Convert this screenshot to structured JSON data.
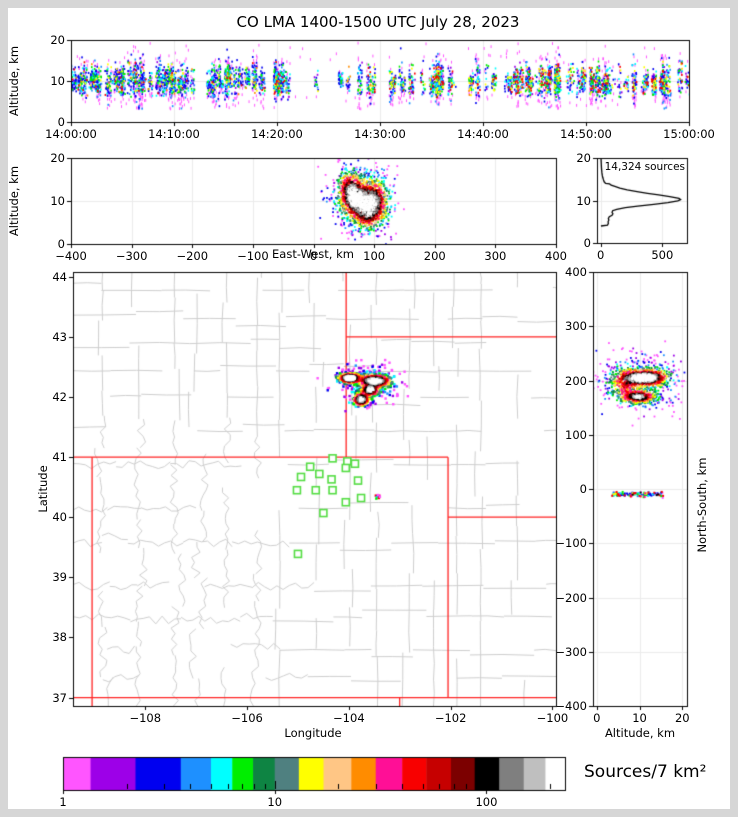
{
  "title": "CO LMA 1400-1500 UTC July 28, 2023",
  "palette": {
    "names": [
      "magenta",
      "purple",
      "blue",
      "dodger-blue",
      "cyan",
      "green",
      "sea-green",
      "slate-teal",
      "yellow",
      "peach",
      "orange",
      "deep-pink",
      "red",
      "dark-red",
      "maroon",
      "black",
      "gray",
      "light-gray",
      "white"
    ],
    "colors": [
      "#ff55ff",
      "#9d00e8",
      "#0000f0",
      "#1e90ff",
      "#00ffff",
      "#00ee00",
      "#0e8443",
      "#4f8080",
      "#ffff00",
      "#ffc685",
      "#ff8c00",
      "#ff0f96",
      "#f80000",
      "#c60000",
      "#7c0000",
      "#000000",
      "#7f7f7f",
      "#bfbfbf",
      "#ffffff"
    ],
    "county_line": "#cdcdcd",
    "state_line": "#ff2222",
    "station_green": "#55dd44",
    "grid_line": "#ebebeb",
    "frame": "#000000"
  },
  "chart_data": [
    {
      "id": "time_height",
      "type": "scatter",
      "xlabel": "",
      "ylabel": "Altitude, km",
      "xlim": [
        0,
        3600
      ],
      "ylim": [
        0,
        20
      ],
      "xticks": {
        "values": [
          0,
          600,
          1200,
          1800,
          2400,
          3000,
          3600
        ],
        "labels": [
          "14:00:00",
          "14:10:00",
          "14:20:00",
          "14:30:00",
          "14:40:00",
          "14:50:00",
          "15:00:00"
        ]
      },
      "yticks": {
        "values": [
          0,
          10,
          20
        ],
        "labels": [
          "0",
          "10",
          "20"
        ]
      },
      "gen": {
        "n_streaks": 170,
        "alt_center": 9.9,
        "alt_center_spread": 2.6,
        "spread_min": 1.2,
        "spread_max": 3.3,
        "lull": [
          1290,
          1660
        ],
        "warm_after": 1700,
        "fringe_extras": 70
      }
    },
    {
      "id": "ew_height",
      "type": "scatter",
      "xlabel": "East-West, km",
      "ylabel": "Altitude, km",
      "xlim": [
        -400,
        400
      ],
      "ylim": [
        0,
        20
      ],
      "xticks": {
        "values": [
          -400,
          -300,
          -200,
          -100,
          0,
          100,
          200,
          300,
          400
        ],
        "labels": [
          "−400",
          "−300",
          "−200",
          "−100",
          "0",
          "100",
          "200",
          "300",
          "400"
        ]
      },
      "yticks": {
        "values": [
          0,
          10,
          20
        ],
        "labels": [
          "0",
          "10",
          "20"
        ]
      },
      "cluster": {
        "n": 2700,
        "gamma": 0.5,
        "jitter": 2.5,
        "lobes": [
          {
            "cx": 68,
            "cy": 10.4,
            "sx": 12,
            "sy": 2.1,
            "w": 1.0,
            "frac": 0.3
          },
          {
            "cx": 97,
            "cy": 10.1,
            "sx": 13,
            "sy": 2.4,
            "w": 0.9,
            "frac": 0.26
          },
          {
            "cx": 88,
            "cy": 6.8,
            "sx": 13,
            "sy": 1.7,
            "w": 0.5,
            "frac": 0.14
          },
          {
            "cx": 60,
            "cy": 13.5,
            "sx": 10,
            "sy": 1.8,
            "w": 0.5,
            "frac": 0.1
          },
          {
            "cx": 82,
            "cy": 10.5,
            "sx": 26,
            "sy": 4.3,
            "w": 0.02,
            "frac": 0.2
          }
        ]
      }
    },
    {
      "id": "alt_histogram",
      "type": "line",
      "annotation": "14,324 sources",
      "total_sources": 14324,
      "xlim": [
        -30,
        700
      ],
      "ylim": [
        0,
        20
      ],
      "xticks": {
        "values": [
          0,
          500
        ],
        "labels": [
          "0",
          "500"
        ]
      },
      "yticks": {
        "values": [
          0,
          10,
          20
        ],
        "labels": [
          "0",
          "10",
          "20"
        ]
      },
      "profile_alt_count": [
        [
          4.0,
          2
        ],
        [
          4.2,
          55
        ],
        [
          4.6,
          62
        ],
        [
          5.0,
          60
        ],
        [
          5.4,
          66
        ],
        [
          5.8,
          62
        ],
        [
          6.2,
          70
        ],
        [
          6.5,
          92
        ],
        [
          6.9,
          99
        ],
        [
          7.2,
          92
        ],
        [
          7.6,
          97
        ],
        [
          7.9,
          130
        ],
        [
          8.3,
          200
        ],
        [
          8.7,
          300
        ],
        [
          9.1,
          430
        ],
        [
          9.5,
          545
        ],
        [
          9.9,
          625
        ],
        [
          10.2,
          648
        ],
        [
          10.5,
          635
        ],
        [
          10.9,
          560
        ],
        [
          11.3,
          470
        ],
        [
          11.7,
          380
        ],
        [
          12.1,
          295
        ],
        [
          12.5,
          215
        ],
        [
          12.9,
          155
        ],
        [
          13.3,
          115
        ],
        [
          13.6,
          85
        ],
        [
          13.9,
          72
        ],
        [
          14.0,
          40
        ],
        [
          14.4,
          28
        ],
        [
          14.9,
          22
        ],
        [
          15.4,
          17
        ],
        [
          15.9,
          13
        ],
        [
          16.5,
          10
        ],
        [
          17.1,
          8
        ],
        [
          17.8,
          6
        ],
        [
          18.4,
          5
        ],
        [
          19.0,
          4
        ],
        [
          19.6,
          3
        ],
        [
          20.0,
          2
        ]
      ]
    },
    {
      "id": "plan_view",
      "type": "scatter-map",
      "xlabel": "Longitude",
      "ylabel": "Latitude",
      "xlim": [
        -109.42,
        -99.93
      ],
      "ylim": [
        36.86,
        44.08
      ],
      "xticks": {
        "values": [
          -108,
          -106,
          -104,
          -102,
          -100
        ],
        "labels": [
          "−108",
          "−106",
          "−104",
          "−102",
          "−100"
        ]
      },
      "yticks": {
        "values": [
          37,
          38,
          39,
          40,
          41,
          42,
          43,
          44
        ],
        "labels": [
          "37",
          "38",
          "39",
          "40",
          "41",
          "42",
          "43",
          "44"
        ]
      },
      "state_borders": [
        [
          [
            -109.42,
            41.0
          ],
          [
            -102.051,
            41.0
          ]
        ],
        [
          [
            -109.045,
            41.0
          ],
          [
            -109.045,
            36.86
          ]
        ],
        [
          [
            -102.051,
            41.0
          ],
          [
            -102.051,
            37.0
          ]
        ],
        [
          [
            -109.42,
            37.0
          ],
          [
            -99.93,
            37.0
          ]
        ],
        [
          [
            -104.053,
            44.08
          ],
          [
            -104.053,
            41.0
          ]
        ],
        [
          [
            -104.053,
            43.0
          ],
          [
            -99.93,
            43.0
          ]
        ],
        [
          [
            -102.051,
            40.003
          ],
          [
            -99.93,
            40.003
          ]
        ],
        [
          [
            -103.002,
            37.0
          ],
          [
            -103.002,
            36.86
          ]
        ]
      ],
      "stations": [
        [
          -104.32,
          40.98
        ],
        [
          -104.03,
          40.93
        ],
        [
          -103.88,
          40.89
        ],
        [
          -104.76,
          40.84
        ],
        [
          -104.06,
          40.82
        ],
        [
          -104.58,
          40.72
        ],
        [
          -104.94,
          40.67
        ],
        [
          -104.34,
          40.63
        ],
        [
          -103.82,
          40.61
        ],
        [
          -105.02,
          40.45
        ],
        [
          -104.65,
          40.45
        ],
        [
          -104.32,
          40.45
        ],
        [
          -103.76,
          40.32
        ],
        [
          -104.06,
          40.25
        ],
        [
          -104.5,
          40.07
        ],
        [
          -105.0,
          39.39
        ]
      ],
      "cluster": {
        "n": 2000,
        "gamma": 0.5,
        "jitter": 2.5,
        "lobes": [
          {
            "cx": -103.98,
            "cy": 42.315,
            "sx": 0.11,
            "sy": 0.04,
            "w": 1.0,
            "frac": 0.26
          },
          {
            "cx": -103.49,
            "cy": 42.27,
            "sx": 0.16,
            "sy": 0.05,
            "w": 0.95,
            "frac": 0.3
          },
          {
            "cx": -103.58,
            "cy": 42.12,
            "sx": 0.09,
            "sy": 0.05,
            "w": 0.8,
            "frac": 0.16
          },
          {
            "cx": -103.76,
            "cy": 41.96,
            "sx": 0.08,
            "sy": 0.055,
            "w": 0.85,
            "frac": 0.14
          },
          {
            "cx": -103.62,
            "cy": 42.22,
            "sx": 0.3,
            "sy": 0.17,
            "w": 0.02,
            "frac": 0.14
          }
        ]
      },
      "small_cluster_points": [
        [
          -103.47,
          40.36,
          12
        ],
        [
          -103.44,
          40.35,
          2
        ],
        [
          -103.42,
          40.34,
          15
        ],
        [
          -103.45,
          40.33,
          4
        ],
        [
          -103.4,
          40.36,
          11
        ],
        [
          -103.43,
          40.37,
          0
        ],
        [
          -103.46,
          40.31,
          5
        ],
        [
          -103.41,
          40.32,
          12
        ],
        [
          -103.39,
          40.34,
          0
        ]
      ]
    },
    {
      "id": "ns_height",
      "type": "scatter",
      "xlabel": "Altitude, km",
      "ylabel": "North-South, km",
      "xlim": [
        -0.9,
        21.1
      ],
      "ylim": [
        -400,
        400
      ],
      "xticks": {
        "values": [
          0,
          10,
          20
        ],
        "labels": [
          "0",
          "10",
          "20"
        ]
      },
      "yticks": {
        "values": [
          -400,
          -300,
          -200,
          -100,
          0,
          100,
          200,
          300,
          400
        ],
        "labels": [
          "−400",
          "−300",
          "−200",
          "−100",
          "0",
          "100",
          "200",
          "300",
          "400"
        ]
      },
      "cluster": {
        "n": 2300,
        "gamma": 0.5,
        "jitter": 2.5,
        "lobes": [
          {
            "cx": 10.3,
            "cy": 205,
            "sx": 2.3,
            "sy": 8,
            "w": 1.0,
            "frac": 0.34
          },
          {
            "cx": 9.8,
            "cy": 170,
            "sx": 2.0,
            "sy": 6,
            "w": 0.85,
            "frac": 0.22
          },
          {
            "cx": 6.3,
            "cy": 195,
            "sx": 1.7,
            "sy": 14,
            "w": 0.4,
            "frac": 0.12
          },
          {
            "cx": 13.5,
            "cy": 205,
            "sx": 1.8,
            "sy": 8,
            "w": 0.5,
            "frac": 0.12
          },
          {
            "cx": 10.0,
            "cy": 198,
            "sx": 4.8,
            "sy": 26,
            "w": 0.02,
            "frac": 0.2
          }
        ]
      },
      "strip": {
        "n": 115,
        "alt_min": 3.5,
        "alt_max": 15.5,
        "ns_center": -10,
        "ns_spread": 2.2,
        "color_weights": [
          [
            2,
            0.22
          ],
          [
            4,
            0.1
          ],
          [
            5,
            0.12
          ],
          [
            12,
            0.16
          ],
          [
            0,
            0.14
          ],
          [
            3,
            0.08
          ],
          [
            11,
            0.06
          ],
          [
            15,
            0.06
          ],
          [
            8,
            0.06
          ]
        ]
      }
    }
  ],
  "colorbar": {
    "label": "Sources/7 km²",
    "min": 1,
    "max": 235,
    "boundaries": [
      1,
      1.35,
      2.2,
      3.6,
      5,
      6.3,
      7.9,
      10,
      13,
      17,
      23,
      30,
      40,
      52,
      68,
      88,
      115,
      150,
      190,
      235
    ],
    "major_ticks": {
      "values": [
        1,
        10,
        100
      ],
      "labels": [
        "1",
        "10",
        "100"
      ]
    },
    "minor_ticks": [
      2,
      3,
      4,
      5,
      6,
      7,
      8,
      9,
      20,
      30,
      40,
      50,
      60,
      70,
      80,
      90,
      200
    ]
  }
}
